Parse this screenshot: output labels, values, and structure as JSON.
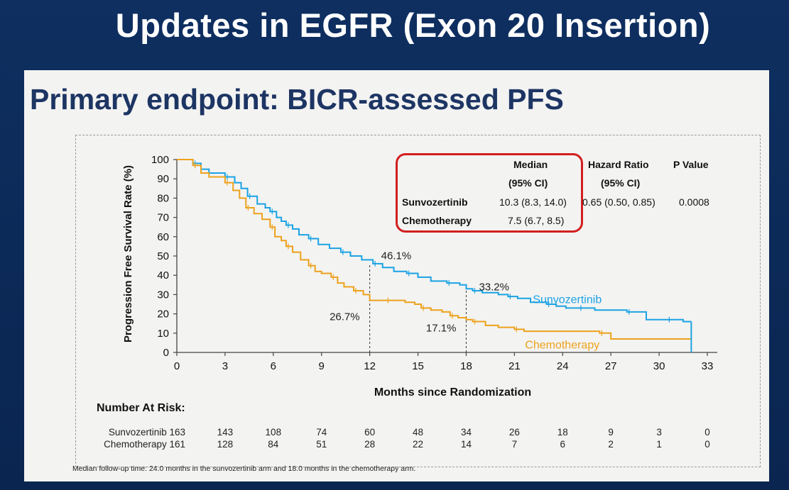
{
  "deck_title": "Updates in EGFR (Exon 20 Insertion)",
  "slide_title": "Primary endpoint: BICR-assessed PFS",
  "colors": {
    "sunvozertinib": "#1ba3e3",
    "chemotherapy": "#eda21c",
    "highlight_border": "#d21f1f",
    "title_navy": "#1d3563",
    "background_navy": "#0c2a58"
  },
  "table": {
    "col_median_line1": "Median",
    "col_median_line2": "(95% CI)",
    "col_hr_line1": "Hazard Ratio",
    "col_hr_line2": "(95% CI)",
    "col_p": "P Value",
    "rows": [
      {
        "arm": "Sunvozertinib",
        "median": "10.3 (8.3, 14.0)",
        "hr": "0.65 (0.50, 0.85)",
        "p": "0.0008"
      },
      {
        "arm": "Chemotherapy",
        "median": "7.5 (6.7, 8.5)",
        "hr": "",
        "p": ""
      }
    ]
  },
  "number_at_risk": {
    "title": "Number At Risk:",
    "rows": [
      {
        "label": "Sunvozertinib 163",
        "values": [
          "143",
          "108",
          "74",
          "60",
          "48",
          "34",
          "26",
          "18",
          "9",
          "3",
          "0"
        ]
      },
      {
        "label": "Chemotherapy 161",
        "values": [
          "128",
          "84",
          "51",
          "28",
          "22",
          "14",
          "7",
          "6",
          "2",
          "1",
          "0"
        ]
      }
    ]
  },
  "footnote": "Median follow-up time: 24.0 months in the sunvozertinib arm and 18.0 months in the chemotherapy arm.",
  "chart_data": {
    "type": "line",
    "subtype": "kaplan-meier step",
    "xlabel": "Months since Randomization",
    "ylabel": "Progression Free Survival Rate (%)",
    "xlim": [
      0,
      33
    ],
    "ylim": [
      0,
      100
    ],
    "xticks": [
      0,
      3,
      6,
      9,
      12,
      15,
      18,
      21,
      24,
      27,
      30,
      33
    ],
    "yticks": [
      0,
      10,
      20,
      30,
      40,
      50,
      60,
      70,
      80,
      90,
      100
    ],
    "grid": false,
    "series": [
      {
        "name": "Sunvozertinib",
        "color": "#1ba3e3",
        "x": [
          0,
          1.0,
          1.5,
          2.0,
          3.0,
          3.6,
          4.0,
          4.4,
          5.0,
          5.5,
          5.8,
          6.2,
          6.5,
          6.8,
          7.2,
          7.6,
          8.2,
          8.8,
          9.5,
          10.2,
          10.8,
          11.5,
          12.2,
          12.8,
          13.5,
          14.3,
          15.0,
          15.8,
          16.8,
          17.6,
          18.0,
          18.4,
          19.0,
          20.0,
          20.6,
          21.2,
          22.0,
          23.0,
          23.6,
          24.2,
          25.0,
          26.0,
          27.0,
          28.0,
          29.0,
          29.2,
          30.5,
          31.5,
          32.0
        ],
        "y": [
          100,
          98,
          95,
          93,
          91,
          88,
          85,
          81,
          77,
          75,
          73,
          70,
          68,
          66,
          64,
          61,
          59,
          56,
          54,
          52,
          50,
          48,
          46,
          44,
          42,
          41,
          39,
          37,
          36,
          35,
          33,
          32,
          31,
          30,
          29,
          28,
          26,
          25,
          24,
          23,
          23,
          22,
          22,
          21,
          21,
          17,
          17,
          16,
          16
        ]
      },
      {
        "name": "Chemotherapy",
        "color": "#eda21c",
        "x": [
          0,
          1.0,
          1.5,
          2.0,
          3.0,
          3.5,
          3.9,
          4.3,
          4.8,
          5.3,
          5.8,
          6.1,
          6.5,
          6.8,
          7.2,
          7.7,
          8.2,
          8.6,
          9.0,
          9.6,
          10.0,
          10.4,
          11.0,
          11.6,
          12.0,
          13.0,
          14.2,
          14.8,
          15.2,
          15.8,
          16.5,
          17.0,
          17.5,
          18.0,
          18.4,
          19.2,
          20.0,
          21.0,
          21.6,
          25.0,
          26.3,
          27.0,
          32.0
        ],
        "y": [
          100,
          97,
          93,
          91,
          88,
          84,
          80,
          75,
          72,
          69,
          65,
          60,
          58,
          55,
          52,
          48,
          45,
          42,
          41,
          39,
          36,
          34,
          32,
          30,
          27,
          27,
          26,
          25,
          23,
          22,
          21,
          19,
          18,
          17,
          16,
          14,
          13,
          12,
          11,
          11,
          10,
          7,
          7
        ]
      }
    ],
    "annotations": [
      {
        "text": "46.1%",
        "x": 12,
        "y": 46.1,
        "series": "Sunvozertinib"
      },
      {
        "text": "33.2%",
        "x": 18,
        "y": 33.2,
        "series": "Sunvozertinib"
      },
      {
        "text": "26.7%",
        "x": 12,
        "y": 26.7,
        "series": "Chemotherapy"
      },
      {
        "text": "17.1%",
        "x": 18,
        "y": 17.1,
        "series": "Chemotherapy"
      }
    ],
    "series_labels": [
      {
        "text": "Sunvozertinib",
        "series": "Sunvozertinib"
      },
      {
        "text": "Chemotherapy",
        "series": "Chemotherapy"
      }
    ]
  }
}
